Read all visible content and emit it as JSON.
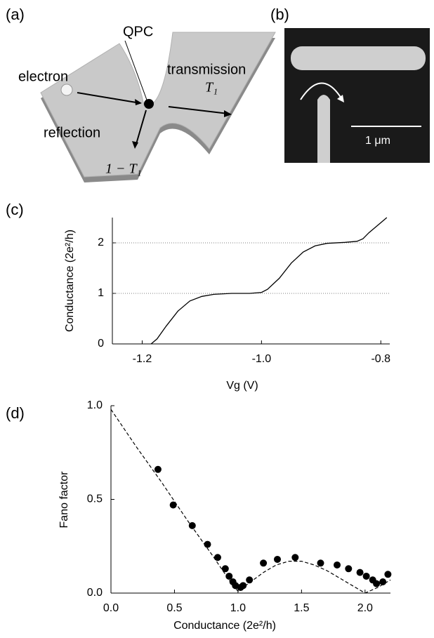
{
  "diagram": {
    "a": {
      "panel_label": "(a)",
      "qpc": "QPC",
      "electron": "electron",
      "transmission": "transmission",
      "t1": "T₁",
      "reflection": "reflection",
      "one_minus_t1": "1 − T₁"
    },
    "b": {
      "panel_label": "(b)",
      "scale_bar": "1 μm"
    }
  },
  "chart_data": [
    {
      "type": "line",
      "panel_label": "(c)",
      "x_label": "Vg (V)",
      "y_label": "Conductance (2e²/h)",
      "color": "#000000",
      "x": [
        -1.185,
        -1.175,
        -1.16,
        -1.14,
        -1.12,
        -1.1,
        -1.08,
        -1.05,
        -1.02,
        -1.0,
        -0.99,
        -0.97,
        -0.95,
        -0.93,
        -0.91,
        -0.89,
        -0.86,
        -0.84,
        -0.83,
        -0.82,
        -0.8,
        -0.79
      ],
      "values": [
        0,
        0.1,
        0.35,
        0.65,
        0.85,
        0.94,
        0.98,
        1.0,
        1.0,
        1.02,
        1.08,
        1.3,
        1.6,
        1.82,
        1.94,
        1.99,
        2.01,
        2.03,
        2.08,
        2.2,
        2.4,
        2.5
      ],
      "xlim": [
        -1.25,
        -0.785
      ],
      "ylim": [
        0,
        2.5
      ],
      "xticks": [
        -1.2,
        {
          "value": -1.0,
          "label": "-1.0"
        },
        -0.8
      ],
      "yticks": [
        0,
        1,
        2
      ],
      "grid": "dotted"
    },
    {
      "type": "scatter",
      "panel_label": "(d)",
      "x_label": "Conductance (2e²/h)",
      "y_label": "Fano factor",
      "series": [
        {
          "mode": "markers",
          "color": "#000000",
          "x": [
            0.37,
            0.49,
            0.64,
            0.76,
            0.84,
            0.9,
            0.93,
            0.96,
            0.98,
            1.02,
            1.04,
            1.09,
            1.2,
            1.31,
            1.45,
            1.65,
            1.78,
            1.87,
            1.96,
            2.01,
            2.06,
            2.09,
            2.14,
            2.18
          ],
          "values": [
            0.66,
            0.47,
            0.36,
            0.26,
            0.19,
            0.13,
            0.09,
            0.06,
            0.04,
            0.03,
            0.04,
            0.07,
            0.16,
            0.18,
            0.19,
            0.16,
            0.15,
            0.13,
            0.11,
            0.09,
            0.07,
            0.05,
            0.06,
            0.1
          ]
        },
        {
          "mode": "dashed",
          "color": "#000000",
          "x": [
            0,
            0.2,
            0.4,
            0.6,
            0.8,
            0.95,
            1.0,
            1.1,
            1.2,
            1.3,
            1.4,
            1.5,
            1.6,
            1.7,
            1.8,
            1.9,
            2.0,
            2.1,
            2.2
          ],
          "values": [
            0.98,
            0.78,
            0.59,
            0.39,
            0.2,
            0.05,
            0.01,
            0.06,
            0.11,
            0.15,
            0.17,
            0.17,
            0.15,
            0.12,
            0.08,
            0.04,
            0.0,
            0.03,
            0.07
          ]
        }
      ],
      "xlim": [
        0,
        2.2
      ],
      "ylim": [
        0,
        1.0
      ],
      "xticks": [
        {
          "value": 0,
          "label": "0.0"
        },
        0.5,
        {
          "value": 1.0,
          "label": "1.0"
        },
        1.5,
        {
          "value": 2.0,
          "label": "2.0"
        }
      ],
      "yticks": [
        {
          "value": 0,
          "label": "0.0"
        },
        0.5,
        {
          "value": 1.0,
          "label": "1.0"
        }
      ]
    }
  ]
}
